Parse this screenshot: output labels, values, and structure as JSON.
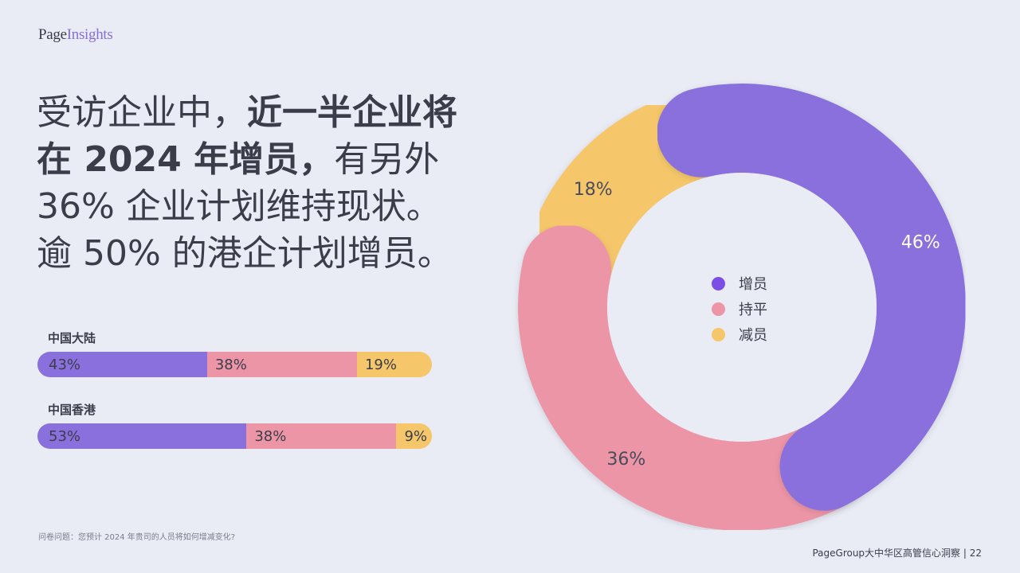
{
  "brand": {
    "logo_page": "Page",
    "logo_insights": "Insights"
  },
  "headline": {
    "line1_normal": "受访企业中，",
    "line1_bold": "近一半企业将",
    "line2_bold": "在 2024 年增员，",
    "line2_normal": "有另外",
    "line3": "36% 企业计划维持现状。",
    "line4": "逾 50% 的港企计划增员。"
  },
  "colors": {
    "increase": "#8a70dd",
    "flat": "#ec95a6",
    "decrease": "#f5c76a",
    "legend_increase": "#7b4ee6"
  },
  "chart_data": [
    {
      "type": "pie",
      "donut": true,
      "categories": [
        "增员",
        "持平",
        "减员"
      ],
      "values": [
        46,
        36,
        18
      ],
      "labels": [
        "46%",
        "36%",
        "18%"
      ],
      "legend": [
        "增员",
        "持平",
        "减员"
      ],
      "legend_position": "center"
    },
    {
      "type": "bar",
      "orientation": "horizontal-stacked",
      "categories": [
        "中国大陆",
        "中国香港"
      ],
      "series": [
        {
          "name": "增员",
          "values": [
            43,
            53
          ],
          "labels": [
            "43%",
            "53%"
          ]
        },
        {
          "name": "持平",
          "values": [
            38,
            38
          ],
          "labels": [
            "38%",
            "38%"
          ]
        },
        {
          "name": "减员",
          "values": [
            19,
            9
          ],
          "labels": [
            "19%",
            "9%"
          ]
        }
      ]
    }
  ],
  "footnote": "问卷问题：您预计 2024 年贵司的人员将如何增减变化?",
  "footer": "PageGroup大中华区高管信心洞察 | 22"
}
